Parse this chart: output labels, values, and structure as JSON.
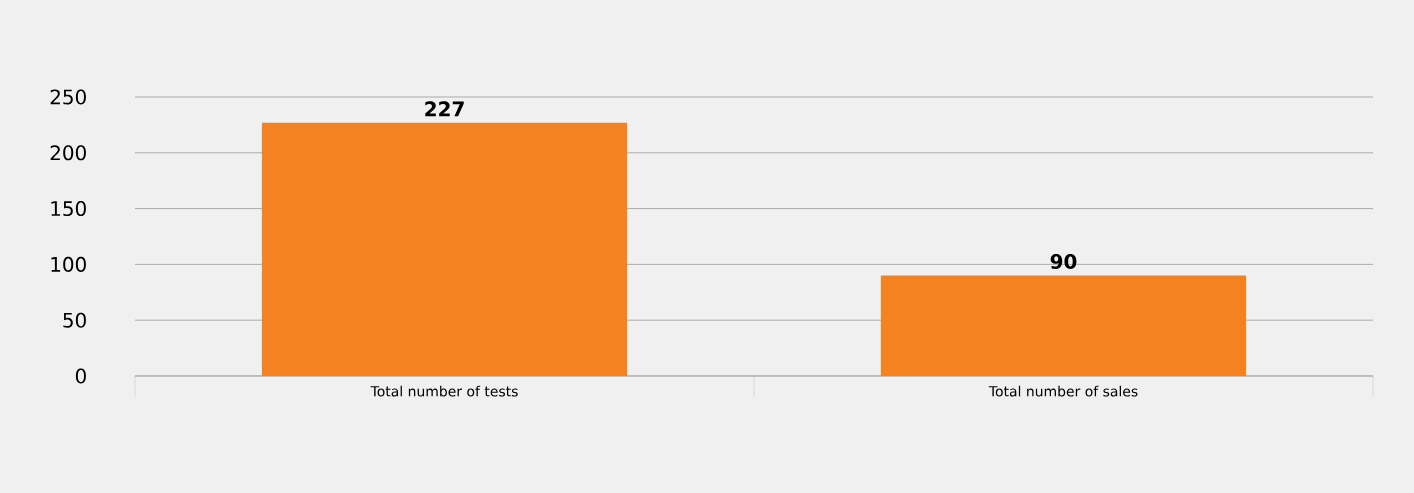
{
  "chart_data": {
    "type": "bar",
    "categories": [
      "Total number of tests",
      "Total number of sales"
    ],
    "values": [
      227,
      90
    ],
    "color": "#f58220",
    "ylim": [
      0,
      250
    ],
    "yticks": [
      0,
      50,
      100,
      150,
      200,
      250
    ],
    "grid": "y",
    "data_labels": true
  }
}
